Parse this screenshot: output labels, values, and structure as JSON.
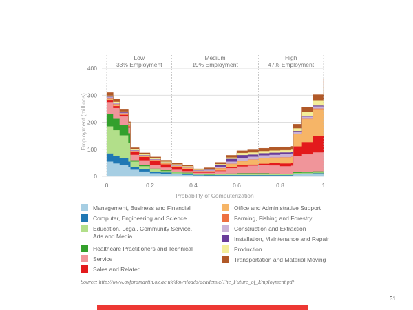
{
  "chart_data": {
    "type": "area",
    "stacked": true,
    "title": "",
    "xlabel": "Probability of Computerization",
    "ylabel": "Employment (millions)",
    "xlim": [
      0,
      1
    ],
    "ylim": [
      0,
      400
    ],
    "xticks": [
      "0",
      "0.2",
      "0.4",
      "0.6",
      "0.8",
      "1"
    ],
    "yticks": [
      "0",
      "100",
      "200",
      "300",
      "400"
    ],
    "grid": true,
    "regions": [
      {
        "name": "Low",
        "subtitle": "33% Employment",
        "boundary": 0.3
      },
      {
        "name": "Medium",
        "subtitle": "19% Employment",
        "boundary": 0.7
      },
      {
        "name": "High",
        "subtitle": "47% Employment",
        "boundary": 1.0
      }
    ],
    "x": [
      0,
      0.03,
      0.06,
      0.1,
      0.11,
      0.15,
      0.2,
      0.25,
      0.3,
      0.35,
      0.4,
      0.45,
      0.5,
      0.55,
      0.6,
      0.65,
      0.7,
      0.75,
      0.8,
      0.85,
      0.86,
      0.9,
      0.95,
      1.0
    ],
    "series": [
      {
        "name": "Management, Business and Financial",
        "color": "#a6cee3",
        "values": [
          55,
          48,
          42,
          35,
          25,
          18,
          12,
          10,
          8,
          6,
          4,
          3,
          3,
          3,
          3,
          3,
          3,
          3,
          3,
          3,
          8,
          9,
          10,
          12
        ]
      },
      {
        "name": "Computer, Engineering and Science",
        "color": "#1f78b4",
        "values": [
          30,
          28,
          25,
          20,
          10,
          8,
          6,
          5,
          3,
          3,
          2,
          2,
          2,
          2,
          2,
          2,
          2,
          2,
          2,
          2,
          2,
          2,
          2,
          2
        ]
      },
      {
        "name": "Education, Legal, Community Service, Arts and Media",
        "color": "#b2df8a",
        "values": [
          100,
          95,
          85,
          70,
          20,
          12,
          8,
          5,
          4,
          3,
          2,
          2,
          3,
          4,
          5,
          5,
          5,
          4,
          3,
          3,
          3,
          3,
          3,
          4
        ]
      },
      {
        "name": "Healthcare Practitioners and Technical",
        "color": "#33a02c",
        "values": [
          45,
          42,
          38,
          35,
          5,
          4,
          3,
          3,
          2,
          2,
          2,
          2,
          2,
          2,
          2,
          2,
          2,
          2,
          2,
          2,
          3,
          3,
          4,
          5
        ]
      },
      {
        "name": "Service",
        "color": "#f0959a",
        "values": [
          45,
          40,
          32,
          20,
          20,
          18,
          14,
          10,
          8,
          6,
          4,
          5,
          10,
          20,
          25,
          28,
          30,
          30,
          28,
          30,
          60,
          65,
          70,
          75
        ]
      },
      {
        "name": "Sales and Related",
        "color": "#e31a1c",
        "values": [
          8,
          7,
          6,
          5,
          10,
          12,
          14,
          12,
          10,
          8,
          3,
          2,
          2,
          3,
          4,
          4,
          5,
          8,
          10,
          10,
          35,
          45,
          60,
          80
        ]
      },
      {
        "name": "Office and Administrative Support",
        "color": "#f6b567",
        "values": [
          4,
          4,
          3,
          3,
          3,
          3,
          3,
          3,
          3,
          3,
          2,
          3,
          8,
          12,
          15,
          18,
          20,
          20,
          22,
          22,
          45,
          85,
          100,
          110
        ]
      },
      {
        "name": "Farming, Fishing and Forestry",
        "color": "#ed7040",
        "values": [
          3,
          3,
          2,
          2,
          1,
          1,
          1,
          1,
          1,
          1,
          1,
          1,
          1,
          1,
          1,
          1,
          1,
          1,
          1,
          1,
          1,
          1,
          2,
          2
        ]
      },
      {
        "name": "Construction and Extraction",
        "color": "#cab2d6",
        "values": [
          3,
          3,
          2,
          2,
          2,
          2,
          2,
          2,
          2,
          2,
          2,
          3,
          5,
          8,
          10,
          10,
          10,
          10,
          12,
          12,
          8,
          8,
          8,
          8
        ]
      },
      {
        "name": "Installation, Maintenance and Repair",
        "color": "#6a3d9a",
        "values": [
          2,
          2,
          2,
          1,
          1,
          1,
          1,
          1,
          1,
          1,
          1,
          2,
          6,
          10,
          12,
          8,
          8,
          8,
          6,
          6,
          3,
          3,
          3,
          3
        ]
      },
      {
        "name": "Production",
        "color": "#f4ee9a",
        "values": [
          4,
          4,
          3,
          3,
          3,
          3,
          3,
          3,
          3,
          3,
          2,
          3,
          4,
          5,
          8,
          8,
          8,
          8,
          8,
          8,
          10,
          15,
          20,
          30
        ]
      },
      {
        "name": "Transportation and Material Moving",
        "color": "#b15928",
        "values": [
          11,
          10,
          9,
          6,
          6,
          5,
          5,
          5,
          5,
          4,
          3,
          4,
          6,
          8,
          8,
          9,
          10,
          12,
          12,
          12,
          15,
          16,
          20,
          30
        ]
      }
    ]
  },
  "legend_left": [
    {
      "label": "Management, Business and Financial",
      "color": "#a6cee3"
    },
    {
      "label": "Computer, Engineering and Science",
      "color": "#1f78b4"
    },
    {
      "label": "Education, Legal, Community Service,\nArts and Media",
      "color": "#b2df8a"
    },
    {
      "label": "Healthcare Practitioners and Technical",
      "color": "#33a02c"
    },
    {
      "label": "Service",
      "color": "#f0959a"
    },
    {
      "label": "Sales and Related",
      "color": "#e31a1c"
    }
  ],
  "legend_right": [
    {
      "label": "Office and Administrative Support",
      "color": "#f6b567"
    },
    {
      "label": "Farming, Fishing and Forestry",
      "color": "#ed7040"
    },
    {
      "label": "Construction and Extraction",
      "color": "#cab2d6"
    },
    {
      "label": "Installation, Maintenance and Repair",
      "color": "#6a3d9a"
    },
    {
      "label": "Production",
      "color": "#f4ee9a"
    },
    {
      "label": "Transportation and Material Moving",
      "color": "#b15928"
    }
  ],
  "source": "Source: http://www.oxfordmartin.ox.ac.uk/downloads/academic/The_Future_of_Employment.pdf",
  "page_number": "31",
  "accent_color": "#ed3833"
}
